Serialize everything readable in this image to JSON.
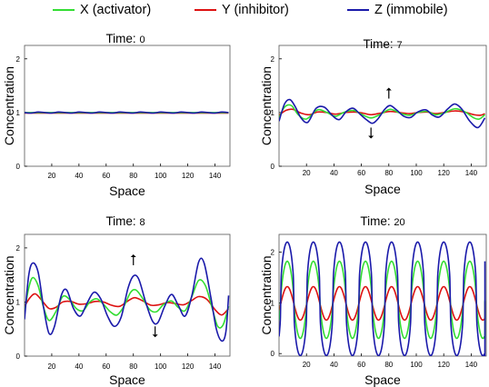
{
  "legend": [
    {
      "label": "X (activator)",
      "color": "#33dd33"
    },
    {
      "label": "Y (inhibitor)",
      "color": "#dd1111"
    },
    {
      "label": "Z (immobile)",
      "color": "#1a1aaa"
    }
  ],
  "colors": {
    "x": "#33dd33",
    "y": "#dd1111",
    "z": "#1a1aaa",
    "axis": "#000000"
  },
  "chart_data": [
    {
      "type": "line",
      "title_prefix": "Time:",
      "title_value": "0",
      "xlabel": "Space",
      "ylabel": "Concentration",
      "xlim": [
        0,
        151
      ],
      "ylim": [
        0,
        2.25
      ],
      "xticks": [
        20,
        40,
        60,
        80,
        100,
        120,
        140
      ],
      "yticks": [
        0,
        1,
        2
      ],
      "arrows": [],
      "series": [
        {
          "key": "x",
          "values": [
            [
              0,
              1.0
            ],
            [
              10,
              1.0
            ],
            [
              20,
              1.0
            ],
            [
              30,
              1.0
            ],
            [
              40,
              1.0
            ],
            [
              50,
              1.0
            ],
            [
              60,
              1.0
            ],
            [
              70,
              1.0
            ],
            [
              80,
              1.0
            ],
            [
              90,
              1.0
            ],
            [
              100,
              1.0
            ],
            [
              110,
              1.0
            ],
            [
              120,
              1.0
            ],
            [
              130,
              1.0
            ],
            [
              140,
              1.0
            ],
            [
              150,
              1.0
            ]
          ]
        },
        {
          "key": "y",
          "values": [
            [
              0,
              0.99
            ],
            [
              10,
              0.99
            ],
            [
              20,
              0.99
            ],
            [
              30,
              0.99
            ],
            [
              40,
              0.99
            ],
            [
              50,
              0.99
            ],
            [
              60,
              0.99
            ],
            [
              70,
              0.99
            ],
            [
              80,
              0.99
            ],
            [
              90,
              0.99
            ],
            [
              100,
              0.99
            ],
            [
              110,
              0.99
            ],
            [
              120,
              0.99
            ],
            [
              130,
              0.99
            ],
            [
              140,
              0.99
            ],
            [
              150,
              0.99
            ]
          ]
        },
        {
          "key": "z",
          "values": [
            [
              0,
              1.0
            ],
            [
              5,
              0.99
            ],
            [
              10,
              1.01
            ],
            [
              15,
              1.0
            ],
            [
              20,
              0.99
            ],
            [
              25,
              1.01
            ],
            [
              30,
              1.0
            ],
            [
              35,
              0.99
            ],
            [
              40,
              1.01
            ],
            [
              45,
              1.0
            ],
            [
              50,
              0.99
            ],
            [
              55,
              1.01
            ],
            [
              60,
              1.0
            ],
            [
              65,
              0.99
            ],
            [
              70,
              1.01
            ],
            [
              75,
              1.0
            ],
            [
              80,
              0.99
            ],
            [
              85,
              1.01
            ],
            [
              90,
              1.0
            ],
            [
              95,
              0.99
            ],
            [
              100,
              1.01
            ],
            [
              105,
              1.0
            ],
            [
              110,
              0.99
            ],
            [
              115,
              1.01
            ],
            [
              120,
              1.0
            ],
            [
              125,
              0.99
            ],
            [
              130,
              1.01
            ],
            [
              135,
              1.0
            ],
            [
              140,
              0.99
            ],
            [
              145,
              1.01
            ],
            [
              150,
              1.0
            ]
          ]
        }
      ]
    },
    {
      "type": "line",
      "title_prefix": "Time:",
      "title_value": "7",
      "xlabel": "Space",
      "ylabel": "Concentration",
      "xlim": [
        0,
        151
      ],
      "ylim": [
        0,
        2.25
      ],
      "xticks": [
        20,
        40,
        60,
        80,
        100,
        120,
        140
      ],
      "yticks": [
        0,
        1,
        2
      ],
      "arrows": [
        {
          "x": 80,
          "y": 1.26,
          "dir": "up"
        },
        {
          "x": 67,
          "y": 0.72,
          "dir": "down"
        }
      ],
      "series": [
        {
          "key": "x",
          "values": [
            [
              0,
              0.9
            ],
            [
              4,
              1.1
            ],
            [
              9,
              1.13
            ],
            [
              14,
              0.96
            ],
            [
              20,
              0.88
            ],
            [
              28,
              1.05
            ],
            [
              35,
              1.0
            ],
            [
              41,
              0.93
            ],
            [
              47,
              1.0
            ],
            [
              54,
              1.04
            ],
            [
              60,
              0.97
            ],
            [
              67,
              0.9
            ],
            [
              74,
              0.97
            ],
            [
              81,
              1.06
            ],
            [
              88,
              0.99
            ],
            [
              95,
              0.95
            ],
            [
              101,
              1.0
            ],
            [
              108,
              1.02
            ],
            [
              114,
              0.96
            ],
            [
              120,
              0.99
            ],
            [
              128,
              1.07
            ],
            [
              135,
              1.02
            ],
            [
              142,
              0.9
            ],
            [
              146,
              0.88
            ],
            [
              150,
              0.96
            ]
          ]
        },
        {
          "key": "y",
          "values": [
            [
              0,
              0.95
            ],
            [
              5,
              1.04
            ],
            [
              10,
              1.06
            ],
            [
              16,
              0.99
            ],
            [
              22,
              0.96
            ],
            [
              28,
              1.01
            ],
            [
              35,
              1.0
            ],
            [
              41,
              0.97
            ],
            [
              48,
              1.0
            ],
            [
              55,
              1.01
            ],
            [
              61,
              0.99
            ],
            [
              67,
              0.96
            ],
            [
              74,
              0.99
            ],
            [
              81,
              1.02
            ],
            [
              88,
              1.0
            ],
            [
              95,
              0.98
            ],
            [
              101,
              1.0
            ],
            [
              108,
              1.01
            ],
            [
              114,
              0.98
            ],
            [
              120,
              1.0
            ],
            [
              128,
              1.03
            ],
            [
              135,
              1.01
            ],
            [
              142,
              0.96
            ],
            [
              147,
              0.95
            ],
            [
              150,
              0.98
            ]
          ]
        },
        {
          "key": "z",
          "values": [
            [
              0,
              0.84
            ],
            [
              4,
              1.16
            ],
            [
              8,
              1.24
            ],
            [
              12,
              1.1
            ],
            [
              16,
              0.9
            ],
            [
              21,
              0.82
            ],
            [
              27,
              1.08
            ],
            [
              33,
              1.1
            ],
            [
              39,
              0.94
            ],
            [
              44,
              0.87
            ],
            [
              49,
              1.02
            ],
            [
              54,
              1.08
            ],
            [
              59,
              0.97
            ],
            [
              64,
              0.86
            ],
            [
              68,
              0.8
            ],
            [
              72,
              0.88
            ],
            [
              77,
              1.06
            ],
            [
              81,
              1.13
            ],
            [
              86,
              1.04
            ],
            [
              91,
              0.93
            ],
            [
              96,
              0.91
            ],
            [
              101,
              1.01
            ],
            [
              107,
              1.05
            ],
            [
              112,
              0.95
            ],
            [
              117,
              0.92
            ],
            [
              123,
              1.07
            ],
            [
              128,
              1.16
            ],
            [
              133,
              1.07
            ],
            [
              139,
              0.84
            ],
            [
              145,
              0.72
            ],
            [
              150,
              0.9
            ]
          ]
        }
      ]
    },
    {
      "type": "line",
      "title_prefix": "Time:",
      "title_value": "8",
      "xlabel": "Space",
      "ylabel": "Concentration",
      "xlim": [
        0,
        151
      ],
      "ylim": [
        0,
        2.25
      ],
      "xticks": [
        20,
        40,
        60,
        80,
        100,
        120,
        140
      ],
      "yticks": [
        0,
        1,
        2
      ],
      "arrows": [
        {
          "x": 80,
          "y": 1.68,
          "dir": "up"
        },
        {
          "x": 96,
          "y": 0.55,
          "dir": "down"
        }
      ],
      "series": [
        {
          "key": "x",
          "values": [
            [
              0,
              0.82
            ],
            [
              3,
              1.25
            ],
            [
              6,
              1.45
            ],
            [
              10,
              1.3
            ],
            [
              14,
              0.9
            ],
            [
              18,
              0.66
            ],
            [
              23,
              0.82
            ],
            [
              28,
              1.1
            ],
            [
              33,
              1.05
            ],
            [
              38,
              0.88
            ],
            [
              43,
              0.84
            ],
            [
              48,
              1.0
            ],
            [
              53,
              1.06
            ],
            [
              58,
              0.96
            ],
            [
              63,
              0.82
            ],
            [
              68,
              0.76
            ],
            [
              73,
              0.92
            ],
            [
              78,
              1.18
            ],
            [
              82,
              1.22
            ],
            [
              87,
              1.06
            ],
            [
              92,
              0.86
            ],
            [
              97,
              0.82
            ],
            [
              102,
              0.95
            ],
            [
              108,
              1.02
            ],
            [
              113,
              0.9
            ],
            [
              118,
              0.84
            ],
            [
              123,
              1.1
            ],
            [
              128,
              1.4
            ],
            [
              133,
              1.3
            ],
            [
              138,
              0.88
            ],
            [
              142,
              0.55
            ],
            [
              146,
              0.58
            ],
            [
              150,
              0.92
            ]
          ]
        },
        {
          "key": "y",
          "values": [
            [
              0,
              0.92
            ],
            [
              4,
              1.08
            ],
            [
              8,
              1.15
            ],
            [
              13,
              1.02
            ],
            [
              18,
              0.88
            ],
            [
              23,
              0.9
            ],
            [
              28,
              1.0
            ],
            [
              34,
              1.01
            ],
            [
              40,
              0.96
            ],
            [
              46,
              0.97
            ],
            [
              52,
              1.01
            ],
            [
              58,
              1.0
            ],
            [
              64,
              0.94
            ],
            [
              70,
              0.92
            ],
            [
              76,
              1.02
            ],
            [
              81,
              1.08
            ],
            [
              87,
              1.02
            ],
            [
              93,
              0.94
            ],
            [
              99,
              0.95
            ],
            [
              105,
              0.99
            ],
            [
              111,
              0.97
            ],
            [
              117,
              0.95
            ],
            [
              123,
              1.03
            ],
            [
              128,
              1.1
            ],
            [
              134,
              1.05
            ],
            [
              140,
              0.86
            ],
            [
              145,
              0.76
            ],
            [
              150,
              0.88
            ]
          ]
        },
        {
          "key": "z",
          "values": [
            [
              0,
              0.68
            ],
            [
              3,
              1.48
            ],
            [
              6,
              1.72
            ],
            [
              10,
              1.55
            ],
            [
              14,
              0.9
            ],
            [
              18,
              0.42
            ],
            [
              22,
              0.55
            ],
            [
              27,
              1.12
            ],
            [
              31,
              1.22
            ],
            [
              36,
              0.88
            ],
            [
              41,
              0.74
            ],
            [
              46,
              0.98
            ],
            [
              51,
              1.18
            ],
            [
              56,
              1.06
            ],
            [
              61,
              0.74
            ],
            [
              66,
              0.55
            ],
            [
              71,
              0.72
            ],
            [
              76,
              1.25
            ],
            [
              80,
              1.48
            ],
            [
              84,
              1.42
            ],
            [
              89,
              1.0
            ],
            [
              94,
              0.65
            ],
            [
              98,
              0.62
            ],
            [
              103,
              0.92
            ],
            [
              108,
              1.14
            ],
            [
              113,
              0.94
            ],
            [
              118,
              0.74
            ],
            [
              123,
              1.12
            ],
            [
              128,
              1.74
            ],
            [
              132,
              1.72
            ],
            [
              137,
              1.08
            ],
            [
              141,
              0.5
            ],
            [
              145,
              0.28
            ],
            [
              148,
              0.45
            ],
            [
              150,
              1.12
            ]
          ]
        }
      ]
    },
    {
      "type": "line",
      "title_prefix": "Time:",
      "title_value": "20",
      "xlabel": "Space",
      "ylabel": "Concentration",
      "xlim": [
        0,
        151
      ],
      "ylim": [
        -0.05,
        2.35
      ],
      "xticks": [
        20,
        40,
        60,
        80,
        100,
        120,
        140
      ],
      "yticks": [
        0,
        1,
        2
      ],
      "arrows": [],
      "profile": {
        "peaks": [
          6,
          25,
          44,
          63,
          82,
          101,
          120,
          139
        ],
        "period": 19,
        "x": {
          "max": 1.82,
          "min": 0.3
        },
        "y": {
          "max": 1.32,
          "min": 0.66
        },
        "z": {
          "max": 2.2,
          "min": -0.04
        },
        "end": {
          "x": 150,
          "x_value": 1.05,
          "y_value": 1.02,
          "z_value": 1.82
        }
      }
    }
  ]
}
